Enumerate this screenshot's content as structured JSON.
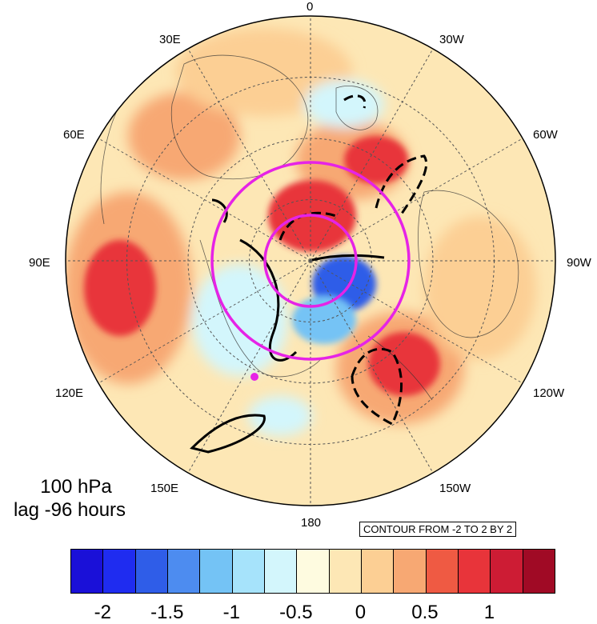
{
  "caption": {
    "level": "100 hPa",
    "lag": "lag -96 hours"
  },
  "contour_note": "CONTOUR FROM -2 TO 2 BY 2",
  "longitude_labels": [
    "0",
    "30W",
    "60W",
    "90W",
    "120W",
    "150W",
    "180",
    "150E",
    "120E",
    "90E",
    "60E",
    "30E"
  ],
  "colorbar": {
    "colors": [
      "#1a10d8",
      "#1f2cf0",
      "#2f5de8",
      "#4d8cf0",
      "#74c3f5",
      "#a6e3fb",
      "#d3f6fc",
      "#fefbe0",
      "#fde7b5",
      "#fccf94",
      "#f7a873",
      "#ef5a43",
      "#e8343a",
      "#cd1c34",
      "#a00a25"
    ],
    "ticks": [
      "-2",
      "-1.5",
      "-1",
      "-0.5",
      "0",
      "0.5",
      "1"
    ]
  },
  "map_colors": {
    "strong_positive": "#e8343a",
    "positive": "#f7a873",
    "weak_positive": "#fccf94",
    "near_zero": "#fde7b5",
    "neutral": "#fefbe0",
    "weak_negative": "#d3f6fc",
    "negative": "#74c3f5",
    "strong_negative": "#2f5de8",
    "ring_color": "#e623e6",
    "marker_color": "#e623e6",
    "contour_color": "#000000"
  }
}
